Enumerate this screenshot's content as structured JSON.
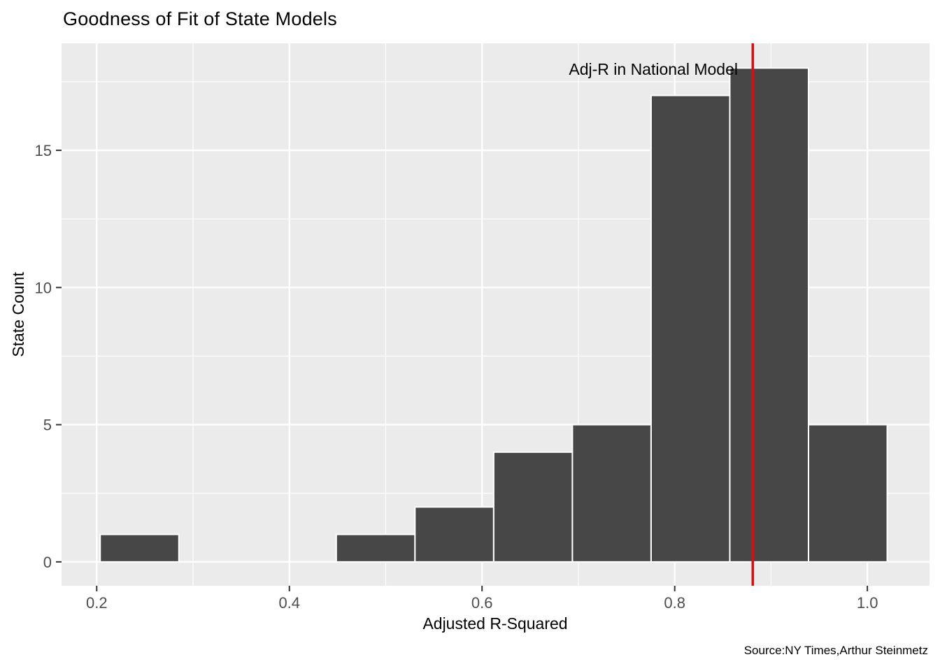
{
  "title": "Goodness of Fit of State Models",
  "caption": "Source:NY Times,Arthur Steinmetz",
  "annotation": {
    "label": "Adj-R in National Model",
    "x_value": 0.881
  },
  "chart_data": {
    "type": "bar",
    "subtype": "histogram",
    "title": "Goodness of Fit of State Models",
    "xlabel": "Adjusted R-Squared",
    "ylabel": "State Count",
    "caption": "Source:NY Times,Arthur Steinmetz",
    "bins": [
      {
        "x0": 0.2036,
        "x1": 0.2853,
        "count": 1
      },
      {
        "x0": 0.2853,
        "x1": 0.367,
        "count": 0
      },
      {
        "x0": 0.367,
        "x1": 0.4487,
        "count": 0
      },
      {
        "x0": 0.4487,
        "x1": 0.5304,
        "count": 1
      },
      {
        "x0": 0.5304,
        "x1": 0.6121,
        "count": 2
      },
      {
        "x0": 0.6121,
        "x1": 0.6938,
        "count": 4
      },
      {
        "x0": 0.6938,
        "x1": 0.7755,
        "count": 5
      },
      {
        "x0": 0.7755,
        "x1": 0.8572,
        "count": 17
      },
      {
        "x0": 0.8572,
        "x1": 0.9389,
        "count": 18
      },
      {
        "x0": 0.9389,
        "x1": 1.0206,
        "count": 5
      }
    ],
    "vline": {
      "x": 0.881,
      "label": "Adj-R in National Model",
      "color": "#FF0000"
    },
    "x_ticks": [
      {
        "v": 0.2,
        "label": "0.2"
      },
      {
        "v": 0.4,
        "label": "0.4"
      },
      {
        "v": 0.6,
        "label": "0.6"
      },
      {
        "v": 0.8,
        "label": "0.8"
      },
      {
        "v": 1.0,
        "label": "1.0"
      }
    ],
    "y_ticks": [
      {
        "v": 0,
        "label": "0"
      },
      {
        "v": 5,
        "label": "5"
      },
      {
        "v": 10,
        "label": "10"
      },
      {
        "v": 15,
        "label": "15"
      }
    ],
    "x_minor": [
      0.3,
      0.5,
      0.7,
      0.9
    ],
    "y_minor": [
      2.5,
      7.5,
      12.5,
      17.5
    ],
    "xlim": [
      0.1635,
      1.0645
    ],
    "ylim": [
      -0.87,
      18.9
    ],
    "grid": true,
    "legend": "none",
    "colors": {
      "bar_fill": "#474747",
      "bar_stroke": "#FFFFFF",
      "panel_bg": "#EBEBEB",
      "grid": "#FFFFFF",
      "vline": "#FF0000",
      "tick_label": "#4D4D4D",
      "tick_mark": "#333333",
      "text": "#000000"
    }
  }
}
